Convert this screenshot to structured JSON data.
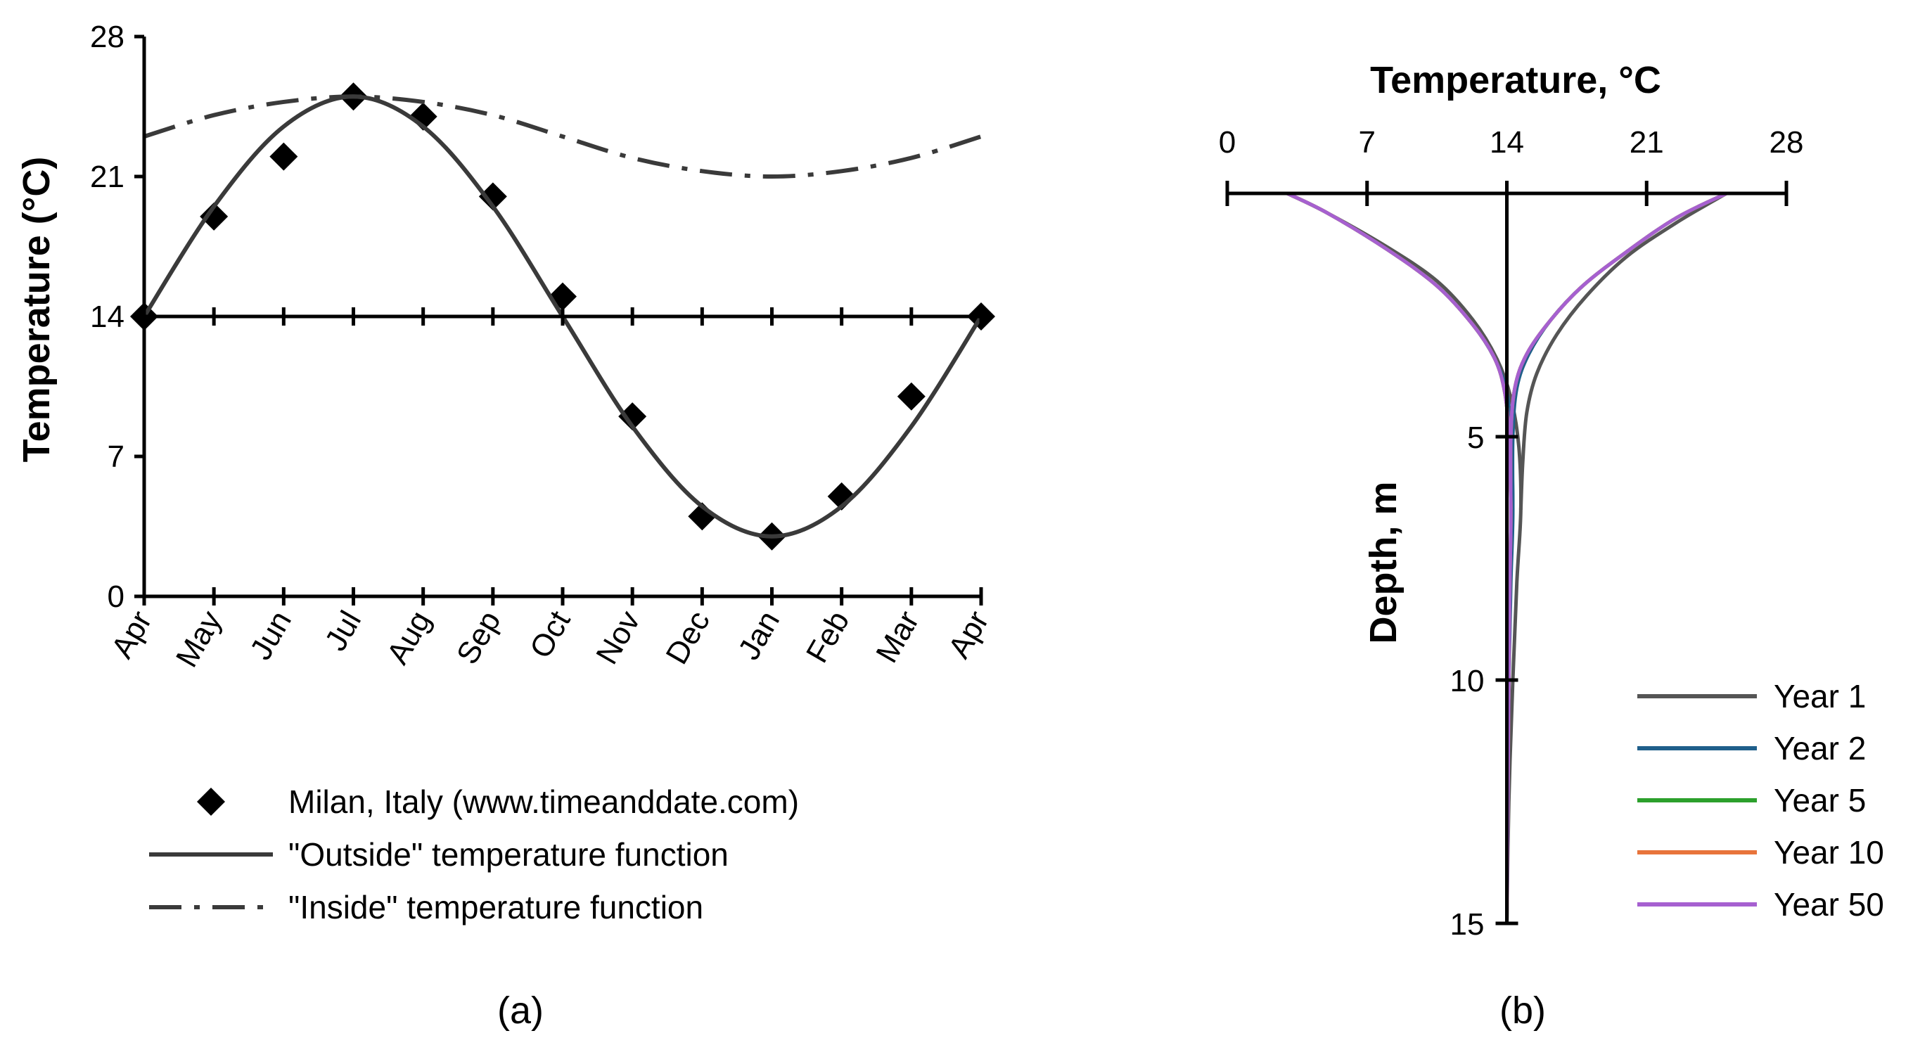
{
  "chart_data": [
    {
      "type": "line",
      "panel": "(a)",
      "ylabel": "Temperature (°C)",
      "xlabel": "",
      "ylim": [
        0,
        28
      ],
      "yticks": [
        0,
        7,
        14,
        21,
        28
      ],
      "categories": [
        "Apr",
        "May",
        "Jun",
        "Jul",
        "Aug",
        "Sep",
        "Oct",
        "Nov",
        "Dec",
        "Jan",
        "Feb",
        "Mar",
        "Apr"
      ],
      "series": [
        {
          "name": "Milan, Italy (www.timeanddate.com)",
          "style": "markers-diamond",
          "color": "#000000",
          "values": [
            14,
            19,
            22,
            25,
            24,
            20,
            15,
            9,
            4,
            3,
            5,
            10,
            14
          ]
        },
        {
          "name": "\"Outside\" temperature function",
          "style": "solid",
          "color": "#3a3a3a",
          "values": [
            14,
            19.5,
            23.5,
            25,
            23.5,
            19.5,
            14,
            8.5,
            4.5,
            3,
            4.5,
            8.5,
            14
          ]
        },
        {
          "name": "\"Inside\" temperature function",
          "style": "dash-dot",
          "color": "#3a3a3a",
          "values": [
            23,
            24.07,
            24.73,
            25,
            24.73,
            24.07,
            23,
            21.93,
            21.27,
            21,
            21.27,
            21.93,
            23
          ]
        }
      ],
      "reference_line": 14,
      "legend_position": "below"
    },
    {
      "type": "line",
      "panel": "(b)",
      "xlabel": "Temperature, °C",
      "ylabel": "Depth, m",
      "xlim": [
        0,
        28
      ],
      "xticks": [
        0,
        7,
        14,
        21,
        28
      ],
      "ylim": [
        0,
        15
      ],
      "yticks": [
        5,
        10,
        15
      ],
      "x_axis_position": "top",
      "y_axis_at": 14,
      "legend_position": "bottom-right",
      "series": [
        {
          "name": "Year 1",
          "color": "#555555",
          "left_branch": [
            [
              3,
              0
            ],
            [
              5,
              0.4
            ],
            [
              8,
              1.1
            ],
            [
              10.5,
              1.8
            ],
            [
              12.3,
              2.6
            ],
            [
              13.5,
              3.4
            ],
            [
              14.2,
              4.2
            ],
            [
              14.6,
              5.2
            ],
            [
              14.7,
              6.5
            ],
            [
              14.5,
              8
            ],
            [
              14.3,
              10
            ],
            [
              14.1,
              12.5
            ],
            [
              14,
              15
            ]
          ],
          "right_branch": [
            [
              25,
              0
            ],
            [
              22.5,
              0.6
            ],
            [
              20,
              1.3
            ],
            [
              18,
              2.1
            ],
            [
              16.5,
              2.9
            ],
            [
              15.5,
              3.7
            ],
            [
              15,
              4.5
            ],
            [
              14.8,
              5.5
            ],
            [
              14.7,
              6.5
            ]
          ]
        },
        {
          "name": "Year 2",
          "color": "#1f5f8b",
          "left_branch": [
            [
              3,
              0
            ],
            [
              5,
              0.4
            ],
            [
              8,
              1.15
            ],
            [
              10.5,
              1.9
            ],
            [
              12.3,
              2.7
            ],
            [
              13.4,
              3.4
            ],
            [
              14,
              4.1
            ],
            [
              14.2,
              5
            ],
            [
              14.3,
              6.5
            ],
            [
              14.2,
              8
            ],
            [
              14.1,
              10
            ],
            [
              14.05,
              12.5
            ],
            [
              14,
              15
            ]
          ],
          "right_branch": [
            [
              25,
              0
            ],
            [
              22.5,
              0.5
            ],
            [
              20,
              1.2
            ],
            [
              17.8,
              1.9
            ],
            [
              16.2,
              2.6
            ],
            [
              15.1,
              3.3
            ],
            [
              14.5,
              4
            ],
            [
              14.3,
              5
            ],
            [
              14.3,
              6.5
            ]
          ]
        },
        {
          "name": "Year 5",
          "color": "#2ca02c",
          "left_branch": [
            [
              3,
              0
            ],
            [
              5,
              0.4
            ],
            [
              8,
              1.15
            ],
            [
              10.5,
              1.9
            ],
            [
              12.3,
              2.7
            ],
            [
              13.4,
              3.4
            ],
            [
              13.9,
              4.1
            ],
            [
              14.1,
              5
            ],
            [
              14.2,
              6.5
            ],
            [
              14.15,
              8
            ],
            [
              14.1,
              10
            ],
            [
              14.05,
              12.5
            ],
            [
              14,
              15
            ]
          ],
          "right_branch": [
            [
              25,
              0
            ],
            [
              22.5,
              0.5
            ],
            [
              20,
              1.2
            ],
            [
              17.8,
              1.9
            ],
            [
              16.2,
              2.6
            ],
            [
              15,
              3.3
            ],
            [
              14.4,
              4
            ],
            [
              14.2,
              5
            ],
            [
              14.2,
              6.5
            ]
          ]
        },
        {
          "name": "Year 10",
          "color": "#e8743b",
          "left_branch": [
            [
              3,
              0
            ],
            [
              5,
              0.4
            ],
            [
              8,
              1.15
            ],
            [
              10.5,
              1.9
            ],
            [
              12.3,
              2.7
            ],
            [
              13.4,
              3.4
            ],
            [
              13.9,
              4.1
            ],
            [
              14.1,
              5
            ],
            [
              14.2,
              6.5
            ],
            [
              14.15,
              8
            ],
            [
              14.1,
              10
            ],
            [
              14.05,
              12.5
            ],
            [
              14,
              15
            ]
          ],
          "right_branch": [
            [
              25,
              0
            ],
            [
              22.5,
              0.5
            ],
            [
              20,
              1.2
            ],
            [
              17.8,
              1.9
            ],
            [
              16.2,
              2.6
            ],
            [
              15,
              3.3
            ],
            [
              14.4,
              4
            ],
            [
              14.2,
              5
            ],
            [
              14.2,
              6.5
            ]
          ]
        },
        {
          "name": "Year 50",
          "color": "#a660d0",
          "left_branch": [
            [
              3,
              0
            ],
            [
              5,
              0.4
            ],
            [
              8,
              1.15
            ],
            [
              10.5,
              1.9
            ],
            [
              12.3,
              2.7
            ],
            [
              13.4,
              3.4
            ],
            [
              13.9,
              4.1
            ],
            [
              14.1,
              5
            ],
            [
              14.2,
              6.5
            ],
            [
              14.15,
              8
            ],
            [
              14.1,
              10
            ],
            [
              14.05,
              12.5
            ],
            [
              14,
              15
            ]
          ],
          "right_branch": [
            [
              25,
              0
            ],
            [
              22.5,
              0.5
            ],
            [
              20,
              1.2
            ],
            [
              17.8,
              1.9
            ],
            [
              16.2,
              2.6
            ],
            [
              15,
              3.3
            ],
            [
              14.4,
              4
            ],
            [
              14.2,
              5
            ],
            [
              14.2,
              6.5
            ]
          ]
        }
      ]
    }
  ],
  "captions": [
    "(a)",
    "(b)"
  ]
}
